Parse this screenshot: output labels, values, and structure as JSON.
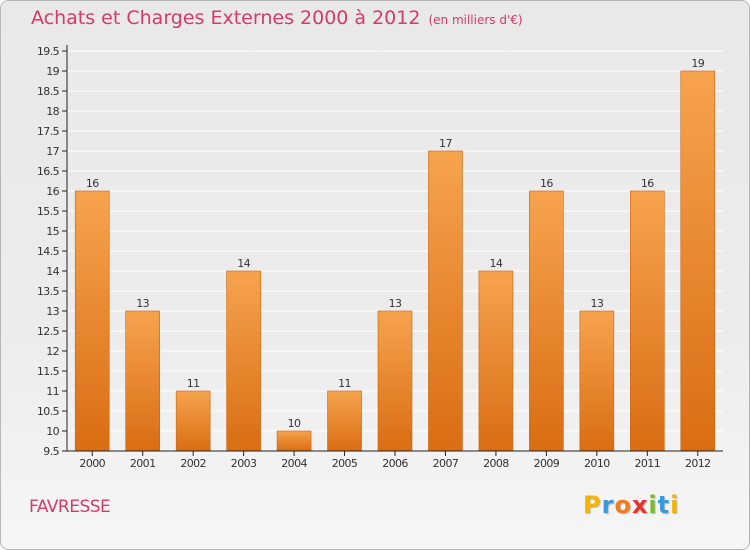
{
  "header": {
    "title": "Achats et Charges Externes 2000 à 2012",
    "unit": "(en milliers d'€)"
  },
  "footer": {
    "town": "FAVRESSE",
    "logo_letters": [
      "P",
      "r",
      "o",
      "x",
      "i",
      "t",
      "i"
    ],
    "logo_colors": [
      "#f7b500",
      "#3a9ad9",
      "#f07c1e",
      "#e3342f",
      "#7cbb2c",
      "#3a9ad9",
      "#f7b500"
    ]
  },
  "colors": {
    "bar_top": "#f7a34e",
    "bar_bottom": "#d96d13",
    "bar_edge": "#c9650f",
    "gridline": "#ffffff",
    "axis": "#222222",
    "accent_text": "#d43b6a"
  },
  "chart_data": {
    "type": "bar",
    "title": "Achats et Charges Externes 2000 à 2012",
    "ylabel": "",
    "xlabel": "",
    "categories": [
      "2000",
      "2001",
      "2002",
      "2003",
      "2004",
      "2005",
      "2006",
      "2007",
      "2008",
      "2009",
      "2010",
      "2011",
      "2012"
    ],
    "values": [
      16,
      13,
      11,
      14,
      10,
      11,
      13,
      17,
      14,
      16,
      13,
      16,
      19
    ],
    "ylim": [
      9.5,
      19.5
    ],
    "yticks": [
      "9.5",
      "10",
      "10.5",
      "11",
      "11.5",
      "12",
      "12.5",
      "13",
      "13.5",
      "14",
      "14.5",
      "15",
      "15.5",
      "16",
      "16.5",
      "17",
      "17.5",
      "18",
      "18.5",
      "19",
      "19.5"
    ],
    "grid": true,
    "legend": "none"
  }
}
